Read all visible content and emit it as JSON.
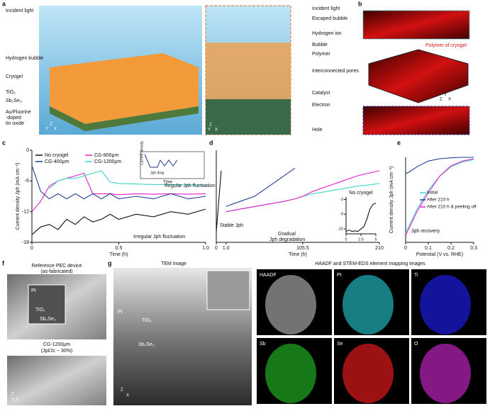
{
  "panel_labels": [
    "a",
    "b",
    "c",
    "d",
    "e",
    "f",
    "g"
  ],
  "panel_a": {
    "left_labels": [
      "Incident light",
      "Hydrogen bubble",
      "Cryogel",
      "TiO₂",
      "Sb₂Se₃",
      "Au/Fluorine",
      "-doped",
      "tin oxide"
    ],
    "right_labels": [
      "Incident light",
      "Escaped bubble",
      "Hydrogen ion",
      "Bubble",
      "Polymer",
      "Interconnected pores",
      "Catalyst",
      "Electron",
      "Hole"
    ],
    "axes": [
      "Z",
      "Y",
      "X"
    ]
  },
  "panel_b": {
    "label": "Polymer of cryogel",
    "axes": [
      "Y",
      "Z",
      "X"
    ]
  },
  "chart_data": [
    {
      "type": "line",
      "x": [
        0,
        0.05,
        0.1,
        0.15,
        0.2,
        0.25,
        0.3,
        0.35,
        0.4,
        0.45,
        0.5,
        0.6,
        0.7,
        0.8,
        0.9,
        1.0
      ],
      "series": [
        {
          "name": "No cryogel",
          "color": "#111111",
          "values": [
            -16.5,
            -15,
            -14.5,
            -15.5,
            -13.5,
            -14.5,
            -13,
            -14,
            -13.5,
            -12.5,
            -13.5,
            -12.5,
            -13,
            -12,
            -12.5,
            -11.5
          ]
        },
        {
          "name": "CG-800μm",
          "color": "#e020c8",
          "values": [
            -12,
            -10,
            -7,
            -6,
            -5.5,
            -5,
            -4.5,
            -8.5,
            -8.5,
            -8.5,
            -8.7,
            -8.5,
            -8.6,
            -8.5,
            -8.6,
            -8.5
          ]
        },
        {
          "name": "CG-400μm",
          "color": "#1f3f8f",
          "values": [
            -3,
            -8,
            -9.5,
            -8.5,
            -9.5,
            -8.5,
            -9.5,
            -8.5,
            -9.5,
            -8.5,
            -9.5,
            -9,
            -9.5,
            -8.5,
            -9.5,
            -9
          ]
        },
        {
          "name": "CG-1200μm",
          "color": "#3fd6c8",
          "values": [
            null,
            null,
            -7.5,
            -6,
            -5.5,
            -5.5,
            -5,
            -4.5,
            -4,
            -6.2,
            -6.5,
            -6.6,
            -6.7,
            -6.7,
            -6.8,
            -6.8
          ]
        }
      ],
      "xlim": [
        0,
        1
      ],
      "xticks": [
        0,
        0.5,
        {
          "value": 1,
          "label": "1.0"
        }
      ],
      "ylim": [
        -18,
        0
      ],
      "yticks": [
        -18,
        -12,
        -6,
        0
      ],
      "xlabel": "Time (h)",
      "ylabel": "Current density Jph (mA cm⁻²)",
      "annotations": [
        "Jph recovery",
        "Regular Jph fluctuation",
        "Irregular Jph fluctuation"
      ],
      "inset_labels": [
        "Current density",
        "Jph drop",
        "Time"
      ]
    },
    {
      "type": "line",
      "x": [
        0,
        0.5,
        1,
        20,
        40,
        60,
        80,
        95,
        105.5,
        120,
        140,
        160,
        180,
        195,
        210
      ],
      "x_axis_break": true,
      "series": [
        {
          "color": "#111111",
          "values": [
            -16,
            -4,
            null,
            null,
            null,
            null,
            null,
            null,
            null,
            null,
            null,
            null,
            null,
            null,
            null
          ]
        },
        {
          "color": "#1f3f8f",
          "values": [
            null,
            null,
            -11,
            -10,
            -9,
            -7,
            -5,
            -3.5,
            null,
            null,
            null,
            null,
            null,
            null,
            null
          ]
        },
        {
          "color": "#3fd6c8",
          "values": [
            null,
            null,
            -12,
            -11.5,
            -11,
            -10.5,
            -10,
            -9.5,
            -9,
            -8.5,
            -8,
            -7.5,
            -7,
            -6.8,
            -6.5
          ]
        },
        {
          "color": "#e020c8",
          "values": [
            null,
            null,
            -12,
            -11.5,
            -11,
            -10.5,
            -10,
            -9.5,
            -9,
            -8,
            -7,
            -6,
            -5,
            -4.5,
            -4
          ]
        }
      ],
      "xlim": [
        0,
        210
      ],
      "xticks": [
        0,
        {
          "value": 1,
          "label": "1.0"
        },
        105.5,
        210
      ],
      "ylim": [
        -18,
        0
      ],
      "xlabel": "Time (h)",
      "annotations": [
        "Stable Jph",
        "Gradual",
        "Jph degradation"
      ]
    },
    {
      "type": "line",
      "title": "No cryogel",
      "x": [
        0,
        0.5,
        1,
        1.5,
        2,
        2.5,
        3,
        3.5,
        4,
        4.5,
        5
      ],
      "series": [
        {
          "color": "#111111",
          "values": [
            -16,
            -15.5,
            -16,
            -15.8,
            -16,
            -15,
            -14,
            -11,
            -7,
            -5,
            -4.5
          ]
        }
      ],
      "xlim": [
        0,
        5
      ],
      "xticks": [
        0,
        2.5,
        5
      ],
      "ylim": [
        -17,
        -2
      ],
      "yticks": [
        -15,
        -9,
        -3
      ]
    },
    {
      "type": "line",
      "x": [
        0,
        0.02,
        0.05,
        0.1,
        0.15,
        0.2,
        0.25,
        0.3
      ],
      "series": [
        {
          "name": "Initial",
          "color": "#3fd6c8",
          "values": [
            -16,
            -14,
            -11,
            -7,
            -4,
            -2,
            -1,
            -0.5
          ]
        },
        {
          "name": "After 210 h",
          "color": "#1f3f8f",
          "values": [
            -3.5,
            -3,
            -2,
            -0.8,
            -0.3,
            -0.1,
            0,
            0
          ]
        },
        {
          "name": "After 210 h & peeling off",
          "color": "#e020c8",
          "values": [
            -16.5,
            -14.5,
            -11.5,
            -7.5,
            -4,
            -1.8,
            -0.8,
            -0.3
          ]
        }
      ],
      "xlim": [
        0,
        0.3
      ],
      "xticks": [
        0,
        0.1,
        0.2,
        0.3
      ],
      "ylim": [
        -18,
        0
      ],
      "xlabel": "Potential (V vs. RHE)",
      "ylabel": "Current density Jph (mA cm⁻²)",
      "annotations": [
        "Jph recovery"
      ]
    }
  ],
  "panel_f": {
    "title": [
      "Reference PEC device",
      "(as-fabricated)"
    ],
    "layers": [
      "Pt",
      "TiO₂",
      "Sb₂Se₃"
    ],
    "sample": [
      "CG-1200μm",
      "(Jpl/Jc ~ 30%)"
    ],
    "axes": [
      "Z",
      "X",
      "Y"
    ]
  },
  "panel_g": {
    "tem_title": "TEM image",
    "tem_layers": [
      "Pt",
      "TiO₂",
      "Sb₂Se₃"
    ],
    "eds_title": "HAADF and STEM-EDS element mapping images",
    "maps": [
      "HAADF",
      "Pt",
      "Ti",
      "Sb",
      "Se",
      "O"
    ],
    "axes": [
      "Z",
      "X"
    ]
  }
}
